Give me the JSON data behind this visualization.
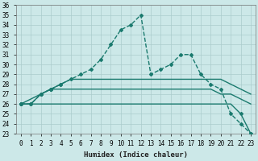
{
  "xlabel": "Humidex (Indice chaleur)",
  "background_color": "#cce8e8",
  "grid_color": "#aacccc",
  "line_color": "#1a7a6e",
  "xlim": [
    -0.5,
    23.5
  ],
  "ylim": [
    23,
    36
  ],
  "xticks": [
    0,
    1,
    2,
    3,
    4,
    5,
    6,
    7,
    8,
    9,
    10,
    11,
    12,
    13,
    14,
    15,
    16,
    17,
    18,
    19,
    20,
    21,
    22,
    23
  ],
  "yticks": [
    23,
    24,
    25,
    26,
    27,
    28,
    29,
    30,
    31,
    32,
    33,
    34,
    35,
    36
  ],
  "series": [
    {
      "x": [
        0,
        1,
        2,
        3,
        4,
        5,
        6,
        7,
        8,
        9,
        10,
        11,
        12,
        13,
        14,
        15,
        16,
        17,
        18,
        19,
        20,
        21,
        22,
        23
      ],
      "y": [
        26,
        26,
        27,
        27.5,
        28,
        28.5,
        29,
        29.5,
        30.5,
        32,
        33.5,
        34,
        35,
        29,
        29.5,
        30,
        31,
        31,
        29,
        28,
        27.5,
        25,
        24,
        23
      ],
      "marker": "D",
      "markersize": 2,
      "linewidth": 1.0,
      "linestyle": "--",
      "markevery": [
        0,
        1,
        2,
        3,
        4,
        5,
        6,
        7,
        8,
        9,
        10,
        11,
        12,
        13,
        14,
        15,
        16,
        17,
        18,
        19,
        20,
        21,
        22,
        23
      ]
    },
    {
      "x": [
        0,
        2,
        3,
        4,
        5,
        6,
        7,
        8,
        9,
        10,
        11,
        12,
        13,
        14,
        15,
        16,
        17,
        18,
        19,
        20,
        21,
        22,
        23
      ],
      "y": [
        26,
        27,
        27.5,
        28,
        28.5,
        28.5,
        28.5,
        28.5,
        28.5,
        28.5,
        28.5,
        28.5,
        28.5,
        28.5,
        28.5,
        28.5,
        28.5,
        28.5,
        28.5,
        28.5,
        28,
        27.5,
        27
      ],
      "marker": "D",
      "markersize": 2,
      "linewidth": 1.0,
      "linestyle": "-",
      "markevery": [
        0,
        1,
        2,
        3
      ]
    },
    {
      "x": [
        0,
        1,
        2,
        3,
        4,
        5,
        6,
        7,
        8,
        9,
        10,
        11,
        12,
        13,
        14,
        15,
        16,
        17,
        18,
        19,
        20,
        21,
        22,
        23
      ],
      "y": [
        26,
        26,
        27,
        27.5,
        27.5,
        27.5,
        27.5,
        27.5,
        27.5,
        27.5,
        27.5,
        27.5,
        27.5,
        27.5,
        27.5,
        27.5,
        27.5,
        27.5,
        27.5,
        27.5,
        27,
        27,
        26.5,
        26
      ],
      "marker": "D",
      "markersize": 2,
      "linewidth": 1.0,
      "linestyle": "-",
      "markevery": [
        0,
        1,
        2,
        3
      ]
    },
    {
      "x": [
        0,
        1,
        2,
        3,
        4,
        5,
        6,
        7,
        8,
        9,
        10,
        11,
        12,
        13,
        14,
        15,
        16,
        17,
        18,
        19,
        20,
        21,
        22,
        23
      ],
      "y": [
        26,
        26,
        26,
        26,
        26,
        26,
        26,
        26,
        26,
        26,
        26,
        26,
        26,
        26,
        26,
        26,
        26,
        26,
        26,
        26,
        26,
        26,
        25,
        23
      ],
      "marker": "D",
      "markersize": 2,
      "linewidth": 1.0,
      "linestyle": "-",
      "markevery": [
        0,
        22,
        23
      ]
    }
  ],
  "font_size": 6.5,
  "tick_font_size": 5.5
}
